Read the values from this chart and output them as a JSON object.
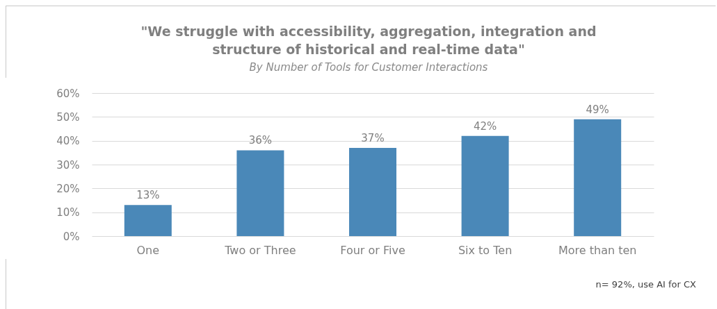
{
  "chart_data": {
    "type": "bar",
    "title": "\"We struggle with accessibility, aggregation, integration and structure of historical and real-time data\"",
    "subtitle": "By Number of Tools for Customer Interactions",
    "categories": [
      "One",
      "Two or Three",
      "Four or Five",
      "Six to Ten",
      "More than ten"
    ],
    "values": [
      13,
      36,
      37,
      42,
      49
    ],
    "color": "#4a88b8",
    "ylim": [
      0,
      60
    ],
    "yticks": [
      {
        "value": 0,
        "label": "0%"
      },
      {
        "value": 10,
        "label": "10%"
      },
      {
        "value": 20,
        "label": "20%"
      },
      {
        "value": 30,
        "label": "30%"
      },
      {
        "value": 40,
        "label": "40%"
      },
      {
        "value": 50,
        "label": "50%"
      },
      {
        "value": 60,
        "label": "60%"
      }
    ],
    "value_labels": [
      "13%",
      "36%",
      "37%",
      "42%",
      "49%"
    ],
    "grid": "y",
    "annotations": [
      "n= 92%, use AI for CX"
    ]
  }
}
